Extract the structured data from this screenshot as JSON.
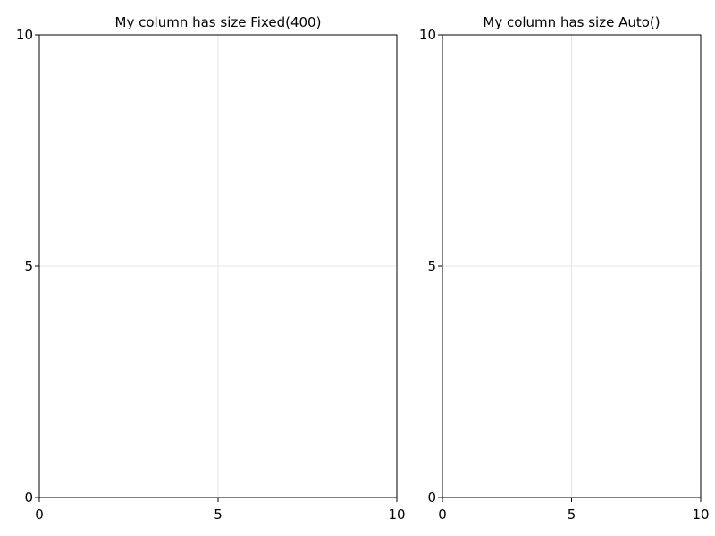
{
  "chart_data": [
    {
      "type": "scatter",
      "title": "My column has size Fixed(400)",
      "xlabel": "",
      "ylabel": "",
      "xlim": [
        0,
        10
      ],
      "ylim": [
        0,
        10
      ],
      "x_ticks": [
        0,
        5,
        10
      ],
      "y_ticks": [
        0,
        5,
        10
      ],
      "grid": true,
      "series": []
    },
    {
      "type": "scatter",
      "title": "My column has size Auto()",
      "xlabel": "",
      "ylabel": "",
      "xlim": [
        0,
        10
      ],
      "ylim": [
        0,
        10
      ],
      "x_ticks": [
        0,
        5,
        10
      ],
      "y_ticks": [
        0,
        5,
        10
      ],
      "grid": true,
      "series": []
    }
  ],
  "colors": {
    "frame": "#000000",
    "grid": "#e6e6e6",
    "background": "#ffffff"
  }
}
